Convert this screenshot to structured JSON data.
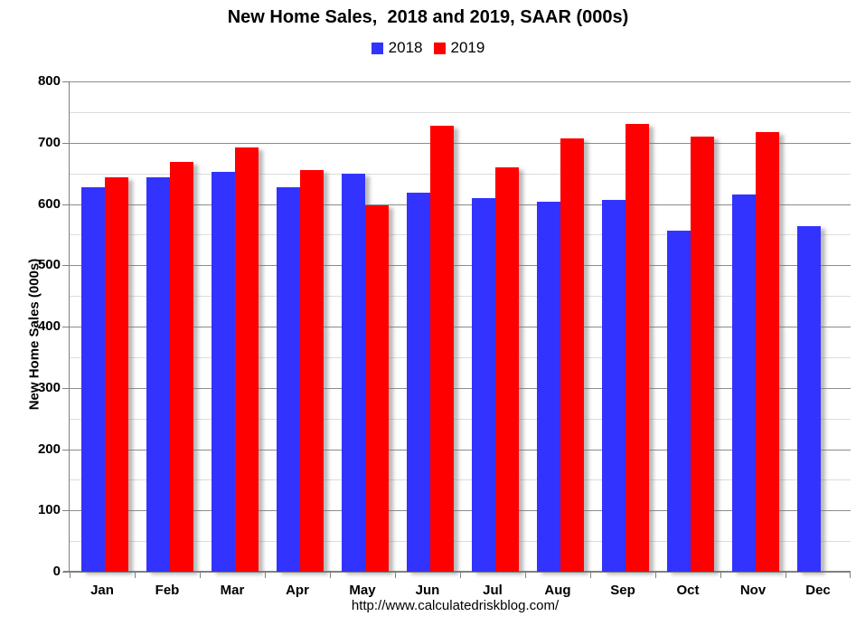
{
  "footer_url": "http://www.calculatedriskblog.com/",
  "chart_data": {
    "type": "bar",
    "title": "New Home Sales,  2018 and 2019, SAAR (000s)",
    "xlabel": "",
    "ylabel": "New Home Sales (000s)",
    "ylim": [
      0,
      800
    ],
    "ytick_interval": 100,
    "minor_gridline_interval": 50,
    "grid": "on",
    "legend_position": "top-center",
    "categories": [
      "Jan",
      "Feb",
      "Mar",
      "Apr",
      "May",
      "Jun",
      "Jul",
      "Aug",
      "Sep",
      "Oct",
      "Nov",
      "Dec"
    ],
    "series": [
      {
        "name": "2018",
        "color": "#3333FF",
        "values": [
          627,
          643,
          653,
          628,
          649,
          618,
          609,
          604,
          606,
          557,
          615,
          564
        ]
      },
      {
        "name": "2019",
        "color": "#FF0000",
        "values": [
          644,
          669,
          692,
          655,
          598,
          728,
          660,
          707,
          730,
          710,
          718,
          null
        ]
      }
    ]
  }
}
